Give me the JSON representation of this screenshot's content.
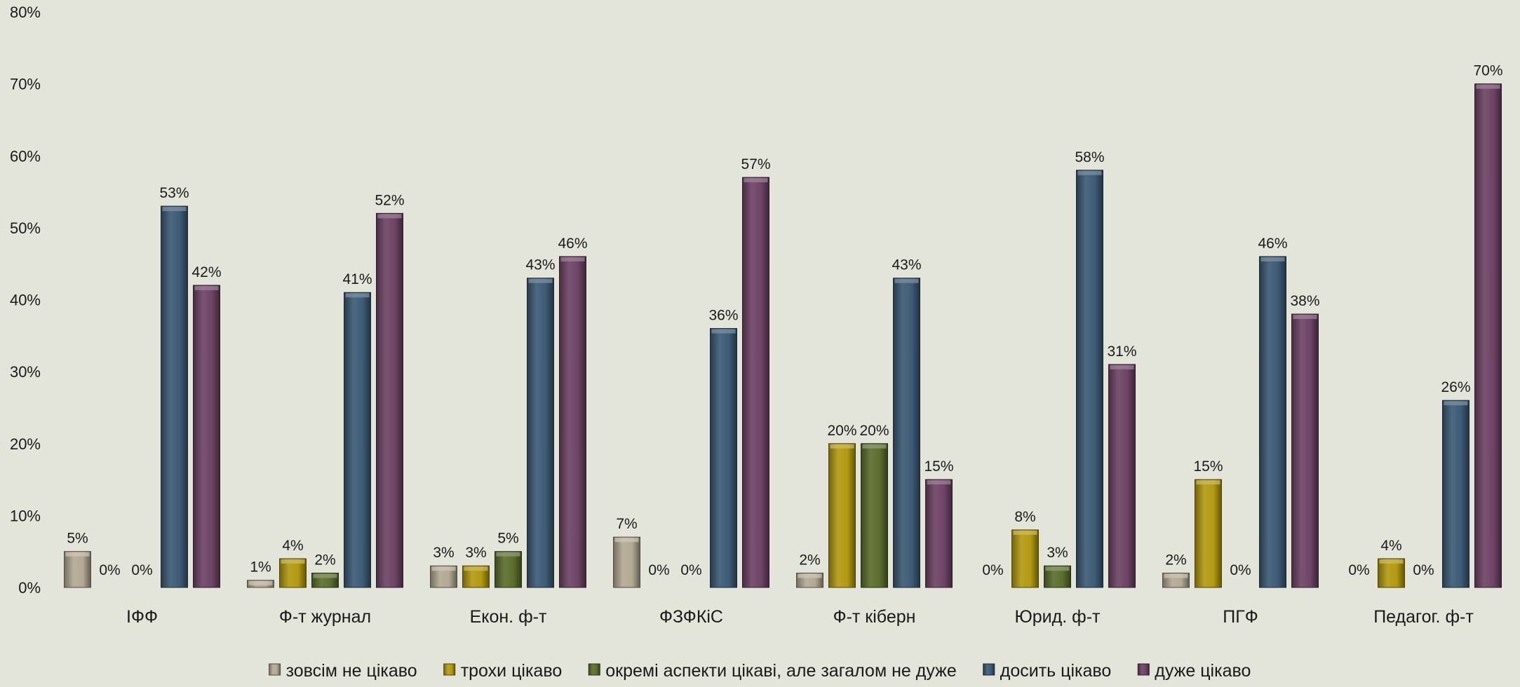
{
  "chart_data": {
    "type": "bar",
    "categories": [
      "ІФФ",
      "Ф-т журнал",
      "Екон. ф-т",
      "ФЗФКіС",
      "Ф-т кіберн",
      "Юрид. ф-т",
      "ПГФ",
      "Педагог. ф-т"
    ],
    "series": [
      {
        "name": "зовсім не цікаво",
        "color": "#b3a994",
        "values": [
          5,
          1,
          3,
          7,
          2,
          0,
          2,
          0
        ],
        "labels": [
          "5%",
          "1%",
          "3%",
          "7%",
          "2%",
          "0%",
          "2%",
          "0%"
        ]
      },
      {
        "name": "трохи цікаво",
        "color": "#b39a12",
        "values": [
          0,
          4,
          3,
          0,
          20,
          8,
          15,
          4
        ],
        "labels": [
          "0%",
          "4%",
          "3%",
          "0%",
          "20%",
          "8%",
          "15%",
          "4%"
        ]
      },
      {
        "name": "окремі аспекти цікаві, але загалом не дуже",
        "color": "#5c6e2e",
        "values": [
          0,
          2,
          5,
          0,
          20,
          3,
          0,
          0
        ],
        "labels": [
          "0%",
          "2%",
          "5%",
          "0%",
          "20%",
          "3%",
          "0%",
          "0%"
        ]
      },
      {
        "name": "досить цікаво",
        "color": "#3e5b76",
        "values": [
          53,
          41,
          43,
          36,
          43,
          58,
          46,
          26
        ],
        "labels": [
          "53%",
          "41%",
          "43%",
          "36%",
          "43%",
          "58%",
          "46%",
          "26%"
        ]
      },
      {
        "name": "дуже цікаво",
        "color": "#6e4466",
        "values": [
          42,
          52,
          46,
          57,
          15,
          31,
          38,
          70
        ],
        "labels": [
          "42%",
          "52%",
          "46%",
          "57%",
          "15%",
          "31%",
          "38%",
          "70%"
        ]
      }
    ],
    "yticks": [
      0,
      10,
      20,
      30,
      40,
      50,
      60,
      70,
      80
    ],
    "ytick_labels": [
      "0%",
      "10%",
      "20%",
      "30%",
      "40%",
      "50%",
      "60%",
      "70%",
      "80%"
    ],
    "ylim": [
      0,
      80
    ],
    "grid": false,
    "legend_position": "bottom",
    "title": "",
    "xlabel": "",
    "ylabel": ""
  }
}
